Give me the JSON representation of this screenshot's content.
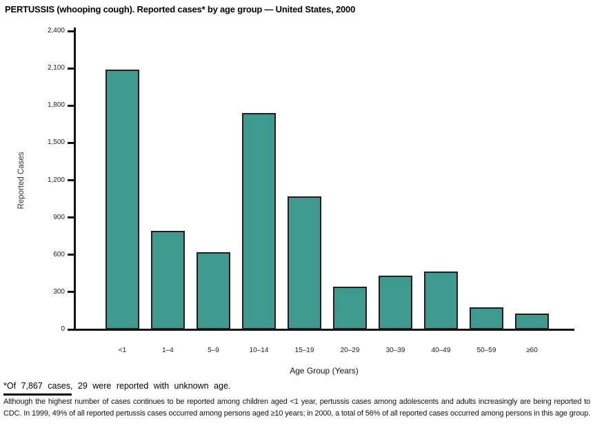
{
  "title": "PERTUSSIS (whooping cough). Reported cases* by age group — United States, 2000",
  "chart_data": {
    "type": "bar",
    "categories": [
      "<1",
      "1–4",
      "5–9",
      "10–14",
      "15–19",
      "20–29",
      "30–39",
      "40–49",
      "50–59",
      "≥60"
    ],
    "values": [
      2090,
      795,
      620,
      1740,
      1070,
      345,
      435,
      465,
      180,
      125
    ],
    "title": "PERTUSSIS (whooping cough). Reported cases* by age group — United States, 2000",
    "xlabel": "Age Group (Years)",
    "ylabel": "Reported Cases",
    "ylim": [
      0,
      2400
    ],
    "yticks": [
      0,
      300,
      600,
      900,
      1200,
      1500,
      1800,
      2100,
      2400
    ],
    "ytick_labels": [
      "0",
      "300",
      "600",
      "900",
      "1,200",
      "1,500",
      "1,800",
      "2,100",
      "2,400"
    ],
    "grid": false,
    "legend": "none",
    "bar_color": "#3E9A8F",
    "bar_border_color": "#1F1F1F",
    "axis_color": "#121212"
  },
  "footnote": "*Of 7,867 cases, 29 were reported with unknown age.",
  "caption": "Although the highest number of cases continues to be reported among children aged <1 year, pertussis cases among adolescents and adults increasingly are being reported to CDC. In 1999, 49% of all reported pertussis cases occurred among persons aged ≥10 years; in 2000, a total of 56% of all reported cases occurred among persons in this age group."
}
